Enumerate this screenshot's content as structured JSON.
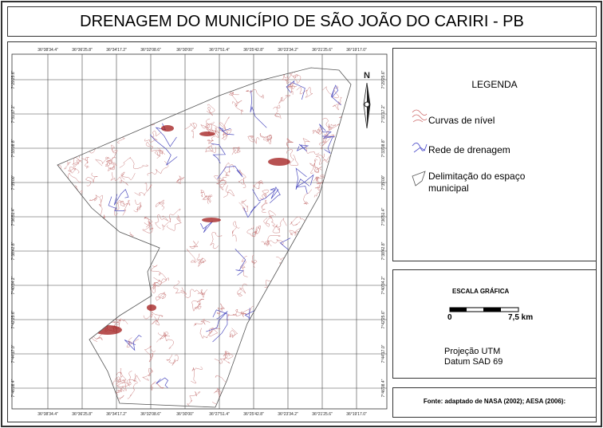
{
  "title": "DRENAGEM DO MUNICÍPIO DE SÃO JOÃO DO CARIRI - PB",
  "grid_labels": {
    "longitude": [
      "36°38'34.4\"",
      "36°36'25.8\"",
      "36°34'17.2\"",
      "36°32'08.6\"",
      "36°30'00\"",
      "36°27'51.4\"",
      "36°25'42.8\"",
      "36°23'34.2\"",
      "36°21'25.6\"",
      "36°19'17.0\""
    ],
    "latitude": [
      "7°29'25.6\"",
      "7°31'17.2\"",
      "7°33'08.8\"",
      "7°35'00\"",
      "7°36'51.4\"",
      "7°38'42.8\"",
      "7°40'34.2\"",
      "7°42'25.6\"",
      "7°44'17.0\"",
      "7°46'08.4\""
    ]
  },
  "north": "N",
  "legend": {
    "title": "LEGENDA",
    "items": [
      "Curvas de nível",
      "Rede de drenagem",
      "Delimitação do espaço municipal"
    ]
  },
  "scale": {
    "title": "ESCALA GRÁFICA",
    "start": "0",
    "end": "7,5 km"
  },
  "projection": [
    "Projeção UTM",
    "Datum SAD 69"
  ],
  "source": "Fonte: adaptado de NASA (2002); AESA (2006):"
}
